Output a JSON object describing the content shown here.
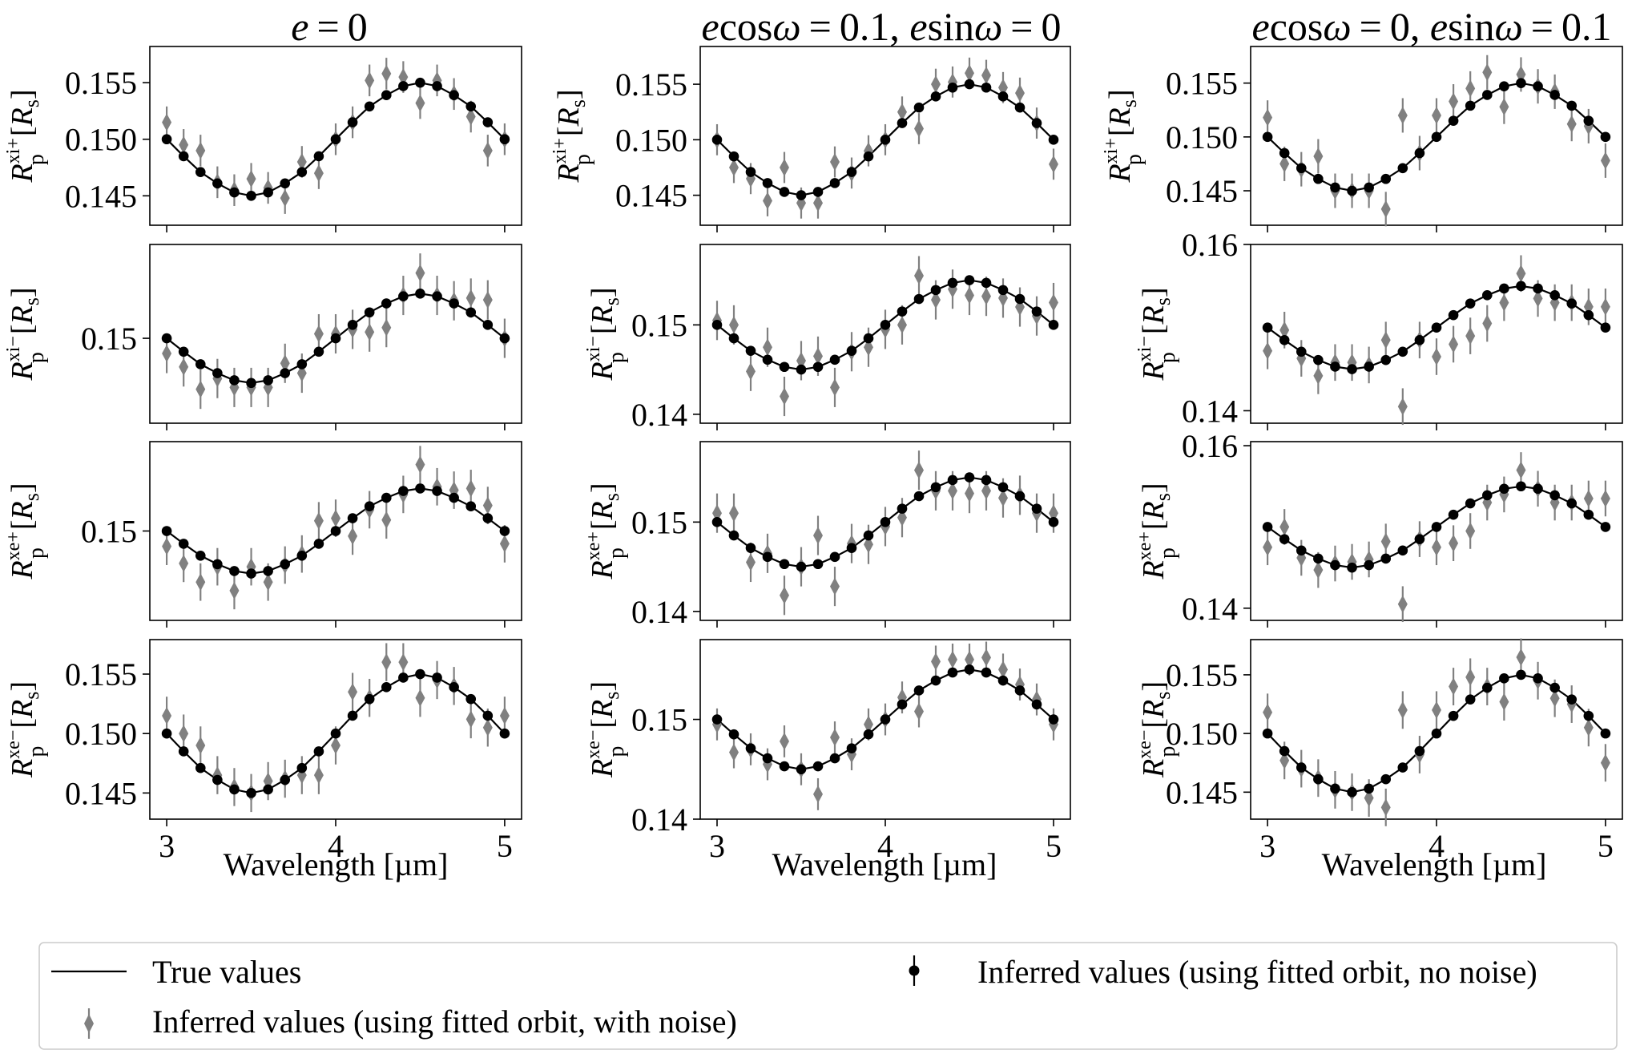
{
  "figure": {
    "xlabel": "Wavelength [µm]",
    "column_titles": [
      {
        "pre": "",
        "html_parts": [
          [
            "e",
            "i"
          ],
          [
            " = 0",
            "n"
          ]
        ]
      },
      {
        "html_parts": [
          [
            "e",
            "i"
          ],
          [
            "cos",
            "n"
          ],
          [
            "ω",
            "i"
          ],
          [
            " = 0.1, ",
            "n"
          ],
          [
            "e",
            "i"
          ],
          [
            "sin",
            "n"
          ],
          [
            "ω",
            "i"
          ],
          [
            " = 0",
            "n"
          ]
        ]
      },
      {
        "html_parts": [
          [
            "e",
            "i"
          ],
          [
            "cos",
            "n"
          ],
          [
            "ω",
            "i"
          ],
          [
            " = 0, ",
            "n"
          ],
          [
            "e",
            "i"
          ],
          [
            "sin",
            "n"
          ],
          [
            "ω",
            "i"
          ],
          [
            " = 0.1",
            "n"
          ]
        ]
      }
    ],
    "row_labels": [
      {
        "main": "R",
        "sub": "p",
        "sup": "xi+",
        "unit": "[R",
        "unit_sub": "s",
        "unit_close": "]"
      },
      {
        "main": "R",
        "sub": "p",
        "sup": "xi−",
        "unit": "[R",
        "unit_sub": "s",
        "unit_close": "]"
      },
      {
        "main": "R",
        "sub": "p",
        "sup": "xe+",
        "unit": "[R",
        "unit_sub": "s",
        "unit_close": "]"
      },
      {
        "main": "R",
        "sub": "p",
        "sup": "xe−",
        "unit": "[R",
        "unit_sub": "s",
        "unit_close": "]"
      }
    ],
    "legend": {
      "true": "True values",
      "noise": "Inferred values (using fitted orbit, with noise)",
      "nonoise": "Inferred values (using fitted orbit, no noise)"
    },
    "colors": {
      "true": "#000000",
      "nonoise": "#000000",
      "noise": "#808080"
    }
  },
  "chart_data": {
    "type": "line",
    "x": [
      3.0,
      3.1,
      3.2,
      3.3,
      3.4,
      3.5,
      3.6,
      3.7,
      3.8,
      3.9,
      4.0,
      4.1,
      4.2,
      4.3,
      4.4,
      4.5,
      4.6,
      4.7,
      4.8,
      4.9,
      5.0
    ],
    "xlim": [
      2.9,
      5.1
    ],
    "xticks": [
      3,
      4,
      5
    ],
    "xtick_labels": [
      "3",
      "4",
      "5"
    ],
    "true_values": [
      0.15,
      0.1485,
      0.1471,
      0.1461,
      0.1453,
      0.145,
      0.1453,
      0.1461,
      0.1471,
      0.1485,
      0.15,
      0.1515,
      0.1529,
      0.1539,
      0.1547,
      0.155,
      0.1547,
      0.1539,
      0.1529,
      0.1515,
      0.15
    ],
    "panels": [
      {
        "column": 0,
        "row": 0,
        "ylim": [
          0.1424,
          0.1582
        ],
        "yticks": [
          "0.145",
          "0.150",
          "0.155"
        ],
        "noise": [
          0.1515,
          0.1495,
          0.149,
          0.1462,
          0.1455,
          0.1465,
          0.1457,
          0.1448,
          0.148,
          0.147,
          0.15,
          0.1515,
          0.1552,
          0.1558,
          0.1555,
          0.1532,
          0.1552,
          0.154,
          0.152,
          0.149,
          0.15
        ],
        "noise_err": 0.0014
      },
      {
        "column": 0,
        "row": 1,
        "ylim": [
          0.1405,
          0.1605
        ],
        "yticks": [
          "0.15"
        ],
        "noise": [
          0.1483,
          0.1468,
          0.1443,
          0.1455,
          0.1445,
          0.1445,
          0.1445,
          0.1472,
          0.1461,
          0.1505,
          0.1505,
          0.151,
          0.1507,
          0.1512,
          0.1548,
          0.1573,
          0.1548,
          0.1542,
          0.1545,
          0.1543,
          0.15
        ],
        "noise_err": 0.0022
      },
      {
        "column": 0,
        "row": 2,
        "ylim": [
          0.1395,
          0.1605
        ],
        "yticks": [
          "0.15"
        ],
        "noise": [
          0.1482,
          0.1462,
          0.144,
          0.1458,
          0.143,
          0.1458,
          0.144,
          0.146,
          0.1473,
          0.1512,
          0.1515,
          0.1494,
          0.1525,
          0.1513,
          0.1543,
          0.1578,
          0.1552,
          0.1548,
          0.155,
          0.153,
          0.1485
        ],
        "noise_err": 0.0022
      },
      {
        "column": 0,
        "row": 3,
        "ylim": [
          0.1428,
          0.1579
        ],
        "yticks": [
          "0.145",
          "0.150",
          "0.155"
        ],
        "noise": [
          0.1515,
          0.15,
          0.149,
          0.1465,
          0.1455,
          0.145,
          0.146,
          0.1462,
          0.1465,
          0.1465,
          0.149,
          0.1535,
          0.153,
          0.156,
          0.156,
          0.153,
          0.1545,
          0.154,
          0.1512,
          0.1505,
          0.1515
        ],
        "noise_err": 0.0016
      },
      {
        "column": 1,
        "row": 0,
        "ylim": [
          0.1423,
          0.1584
        ],
        "yticks": [
          "0.145",
          "0.150",
          "0.155"
        ],
        "noise": [
          0.15,
          0.1475,
          0.1465,
          0.1445,
          0.1475,
          0.1443,
          0.1443,
          0.148,
          0.147,
          0.149,
          0.15,
          0.1525,
          0.151,
          0.155,
          0.1552,
          0.156,
          0.1558,
          0.1547,
          0.1542,
          0.1515,
          0.1478
        ],
        "noise_err": 0.0014
      },
      {
        "column": 1,
        "row": 1,
        "ylim": [
          0.139,
          0.159
        ],
        "yticks": [
          "0.14",
          "0.15"
        ],
        "noise": [
          0.1505,
          0.15,
          0.1448,
          0.1475,
          0.142,
          0.146,
          0.1465,
          0.143,
          0.147,
          0.1475,
          0.1495,
          0.15,
          0.1555,
          0.1528,
          0.154,
          0.1533,
          0.1532,
          0.153,
          0.152,
          0.151,
          0.1525
        ],
        "noise_err": 0.0022
      },
      {
        "column": 1,
        "row": 2,
        "ylim": [
          0.139,
          0.159
        ],
        "yticks": [
          "0.14",
          "0.15"
        ],
        "noise": [
          0.151,
          0.151,
          0.1455,
          0.1465,
          0.1418,
          0.145,
          0.1485,
          0.1428,
          0.1476,
          0.1475,
          0.1495,
          0.1505,
          0.1558,
          0.1535,
          0.1535,
          0.1532,
          0.1535,
          0.1527,
          0.153,
          0.151,
          0.151
        ],
        "noise_err": 0.0022
      },
      {
        "column": 1,
        "row": 3,
        "ylim": [
          0.14,
          0.158
        ],
        "yticks": [
          "0.14",
          "0.15"
        ],
        "noise": [
          0.1495,
          0.1467,
          0.147,
          0.1455,
          0.1478,
          0.145,
          0.1425,
          0.1482,
          0.1465,
          0.1495,
          0.15,
          0.1522,
          0.1508,
          0.1558,
          0.156,
          0.156,
          0.1562,
          0.155,
          0.1535,
          0.152,
          0.1495
        ],
        "noise_err": 0.0016
      },
      {
        "column": 2,
        "row": 0,
        "ylim": [
          0.1418,
          0.1584
        ],
        "yticks": [
          "0.145",
          "0.150",
          "0.155"
        ],
        "noise": [
          0.1518,
          0.1475,
          0.147,
          0.1482,
          0.145,
          0.145,
          0.145,
          0.1433,
          0.152,
          0.1485,
          0.152,
          0.1533,
          0.1545,
          0.156,
          0.1528,
          0.1558,
          0.1547,
          0.1542,
          0.1512,
          0.151,
          0.1478
        ],
        "noise_err": 0.0016
      },
      {
        "column": 2,
        "row": 1,
        "ylim": [
          0.1385,
          0.16
        ],
        "yticks": [
          "0.14",
          "0.16"
        ],
        "noise": [
          0.1472,
          0.1497,
          0.1463,
          0.1442,
          0.1458,
          0.1458,
          0.1455,
          0.1485,
          0.1405,
          0.1485,
          0.1465,
          0.148,
          0.149,
          0.1505,
          0.153,
          0.1565,
          0.1535,
          0.153,
          0.153,
          0.1525,
          0.1525
        ],
        "noise_err": 0.0022
      },
      {
        "column": 2,
        "row": 2,
        "ylim": [
          0.1385,
          0.1605
        ],
        "yticks": [
          "0.14",
          "0.16"
        ],
        "noise": [
          0.1475,
          0.15,
          0.1462,
          0.1447,
          0.1455,
          0.1457,
          0.146,
          0.1482,
          0.1405,
          0.1485,
          0.1475,
          0.148,
          0.1495,
          0.153,
          0.154,
          0.157,
          0.1547,
          0.153,
          0.153,
          0.1535,
          0.1535
        ],
        "noise_err": 0.0022
      },
      {
        "column": 2,
        "row": 3,
        "ylim": [
          0.1427,
          0.158
        ],
        "yticks": [
          "0.145",
          "0.150",
          "0.155"
        ],
        "noise": [
          0.1518,
          0.1477,
          0.147,
          0.1462,
          0.1452,
          0.145,
          0.1445,
          0.1437,
          0.152,
          0.1482,
          0.152,
          0.154,
          0.1548,
          0.154,
          0.1527,
          0.1565,
          0.1545,
          0.153,
          0.1525,
          0.1505,
          0.1475
        ],
        "noise_err": 0.0016
      }
    ]
  }
}
